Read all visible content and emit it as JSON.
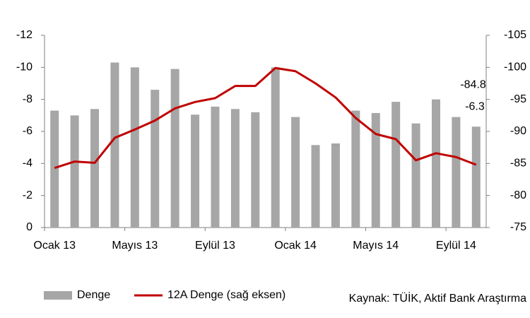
{
  "chart_data": {
    "type": "bar_line",
    "categories": [
      "Ocak 13",
      null,
      null,
      null,
      "Mayıs 13",
      null,
      null,
      null,
      "Eylül 13",
      null,
      null,
      null,
      "Ocak 14",
      null,
      null,
      null,
      "Mayıs 14",
      null,
      null,
      null,
      "Eylül 14",
      null
    ],
    "series": [
      {
        "name": "Denge",
        "type": "bar",
        "color": "#a6a6a6",
        "values": [
          -7.3,
          -7.0,
          -7.4,
          -10.3,
          -10.0,
          -8.6,
          -9.9,
          -7.05,
          -7.55,
          -7.4,
          -7.2,
          -10.0,
          -6.9,
          -5.15,
          -5.25,
          -7.3,
          -7.15,
          -7.85,
          -6.5,
          -8.0,
          -6.9,
          -6.3
        ],
        "value_labels": [
          null,
          null,
          null,
          null,
          null,
          null,
          null,
          null,
          null,
          null,
          null,
          null,
          null,
          null,
          null,
          null,
          null,
          null,
          null,
          null,
          null,
          "-6.3"
        ]
      },
      {
        "name": "12A Denge (sağ eksen)",
        "type": "line",
        "axis": "y2",
        "color": "#c00000",
        "values": [
          -84.3,
          -85.3,
          -85.1,
          -89.0,
          -90.3,
          -91.7,
          -93.6,
          -94.6,
          -95.2,
          -97.1,
          -97.1,
          -99.9,
          -99.4,
          -97.5,
          -95.3,
          -92.1,
          -89.6,
          -88.8,
          -85.5,
          -86.6,
          -86.0,
          -84.8
        ],
        "value_labels": [
          null,
          null,
          null,
          null,
          null,
          null,
          null,
          null,
          null,
          null,
          null,
          null,
          null,
          null,
          null,
          null,
          null,
          null,
          null,
          null,
          null,
          "-84.8"
        ]
      }
    ],
    "ylim": [
      0,
      -12
    ],
    "yticks": [
      0,
      -2,
      -4,
      -6,
      -8,
      -10,
      -12
    ],
    "y2lim": [
      -75,
      -105
    ],
    "y2ticks": [
      -75,
      -80,
      -85,
      -90,
      -95,
      -100,
      -105
    ],
    "source": "Kaynak: TÜİK, Aktif Bank Araştırma"
  }
}
